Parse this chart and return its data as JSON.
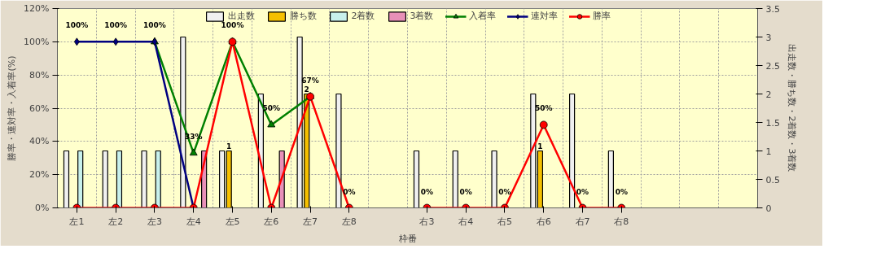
{
  "chart_data": {
    "type": "bar",
    "xlabel": "枠番",
    "ylabel": "勝率・連対率・入着率(%)",
    "y2label": "出走数・勝ち数・2着数・3着数",
    "categories": [
      "左1",
      "左2",
      "左3",
      "左4",
      "左5",
      "左6",
      "左7",
      "左8",
      null,
      "右3",
      "右4",
      "右5",
      "右6",
      "右7",
      "右8",
      null,
      null,
      null
    ],
    "series": [
      {
        "name": "出走数",
        "axis": "y2",
        "color": "#f0f0f0",
        "values": [
          1,
          1,
          1,
          3,
          1,
          2,
          3,
          2,
          null,
          1,
          1,
          1,
          2,
          2,
          1,
          null,
          null,
          null
        ]
      },
      {
        "name": "勝ち数",
        "axis": "y2",
        "color": "#f5c000",
        "values": [
          null,
          null,
          null,
          null,
          1,
          null,
          2,
          null,
          null,
          null,
          null,
          null,
          1,
          null,
          null,
          null,
          null,
          null
        ],
        "value_labels": [
          null,
          null,
          null,
          null,
          "1",
          null,
          "2",
          null,
          null,
          null,
          null,
          null,
          "1",
          null,
          null,
          null,
          null,
          null
        ]
      },
      {
        "name": "2着数",
        "axis": "y2",
        "color": "#c8f0ec",
        "values": [
          1,
          1,
          1,
          null,
          null,
          null,
          null,
          null,
          null,
          null,
          null,
          null,
          null,
          null,
          null,
          null,
          null,
          null
        ]
      },
      {
        "name": "3着数",
        "axis": "y2",
        "color": "#e890b8",
        "values": [
          null,
          null,
          null,
          1,
          null,
          1,
          null,
          null,
          null,
          null,
          null,
          null,
          null,
          null,
          null,
          null,
          null,
          null
        ]
      },
      {
        "name": "入着率",
        "type": "line",
        "marker": "triangle",
        "color": "#008000",
        "values": [
          null,
          null,
          100,
          33,
          100,
          50,
          67,
          null,
          null,
          null,
          null,
          null,
          null,
          null,
          null,
          null,
          null,
          null
        ],
        "value_labels": [
          null,
          null,
          "100%",
          "33%",
          "100%",
          "50%",
          "67%",
          null,
          null,
          null,
          null,
          null,
          null,
          null,
          null,
          null,
          null,
          null
        ]
      },
      {
        "name": "連対率",
        "type": "line",
        "marker": "diamond",
        "color": "#000080",
        "values": [
          100,
          100,
          100,
          0,
          null,
          null,
          null,
          null,
          null,
          null,
          null,
          null,
          null,
          null,
          null,
          null,
          null,
          null
        ],
        "value_labels": [
          "100%",
          "100%",
          null,
          null,
          null,
          null,
          null,
          null,
          null,
          null,
          null,
          null,
          null,
          null,
          null,
          null,
          null,
          null
        ]
      },
      {
        "name": "勝率",
        "type": "line",
        "marker": "circle",
        "color": "#ff0000",
        "values": [
          0,
          0,
          0,
          0,
          100,
          0,
          67,
          0,
          null,
          0,
          0,
          0,
          50,
          0,
          0,
          null,
          null,
          null
        ],
        "value_labels": [
          null,
          null,
          null,
          null,
          null,
          null,
          null,
          "0%",
          null,
          "0%",
          "0%",
          "0%",
          "50%",
          "0%",
          "0%",
          null,
          null,
          null
        ]
      }
    ],
    "ylim": [
      0,
      120
    ],
    "yticks": [
      {
        "value": 0,
        "label": "0%"
      },
      {
        "value": 20,
        "label": "20%"
      },
      {
        "value": 40,
        "label": "40%"
      },
      {
        "value": 60,
        "label": "60%"
      },
      {
        "value": 80,
        "label": "80%"
      },
      {
        "value": 100,
        "label": "100%"
      },
      {
        "value": 120,
        "label": "120%"
      }
    ],
    "y2lim": [
      0,
      3.5
    ],
    "y2ticks": [
      0,
      0.5,
      1,
      1.5,
      2,
      2.5,
      3,
      3.5
    ],
    "grid": true,
    "legend": "top",
    "line_style": "solid"
  }
}
